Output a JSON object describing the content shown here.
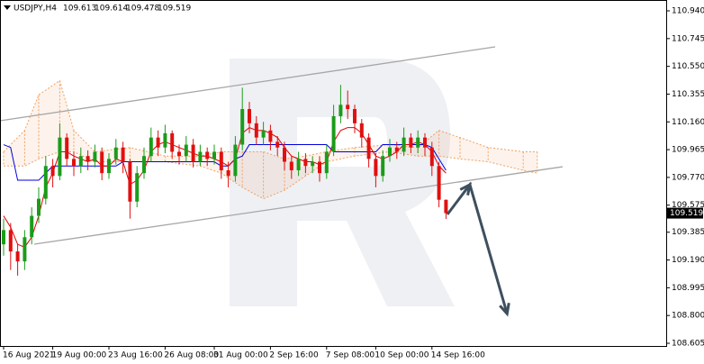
{
  "chart_data": {
    "type": "candlestick",
    "title": "USDJPY,H4",
    "up_color": "#1a9c1a",
    "down_color": "#e01010",
    "open": [
      109.3,
      109.4,
      109.25,
      109.18,
      109.35,
      109.5,
      109.62,
      109.85,
      109.78,
      110.05,
      109.9,
      109.85,
      109.92,
      109.88,
      109.95,
      109.8,
      109.9,
      109.98,
      109.88,
      109.6,
      109.8,
      109.92,
      110.05,
      109.98,
      110.08,
      109.95,
      109.92,
      110.0,
      109.88,
      109.95,
      109.9,
      109.95,
      109.82,
      109.78,
      110.0,
      110.25,
      110.15,
      110.05,
      110.1,
      110.02,
      109.98,
      109.88,
      109.82,
      109.9,
      109.85,
      109.88,
      109.8,
      109.95,
      110.2,
      110.28,
      110.25,
      110.15,
      110.05,
      109.9,
      109.78,
      109.92,
      109.98,
      109.95,
      110.05,
      109.98,
      110.05,
      109.98,
      109.85,
      109.613
    ],
    "high": [
      109.48,
      109.45,
      109.3,
      109.4,
      109.56,
      109.7,
      109.92,
      109.9,
      110.15,
      110.08,
      109.95,
      109.98,
      109.96,
      110.0,
      109.98,
      109.94,
      110.04,
      110.02,
      109.9,
      109.85,
      109.98,
      110.12,
      110.1,
      110.14,
      110.1,
      110.0,
      110.06,
      110.04,
      110.0,
      109.98,
      110.0,
      109.98,
      109.88,
      110.06,
      110.4,
      110.3,
      110.2,
      110.16,
      110.14,
      110.06,
      110.02,
      109.92,
      109.95,
      109.94,
      109.92,
      109.92,
      110.0,
      110.28,
      110.42,
      110.38,
      110.28,
      110.18,
      110.08,
      109.94,
      109.96,
      110.04,
      110.02,
      110.12,
      110.08,
      110.1,
      110.08,
      110.02,
      109.88,
      109.614
    ],
    "low": [
      109.22,
      109.12,
      109.08,
      109.12,
      109.3,
      109.45,
      109.58,
      109.7,
      109.75,
      109.85,
      109.78,
      109.8,
      109.82,
      109.84,
      109.75,
      109.76,
      109.86,
      109.8,
      109.48,
      109.56,
      109.76,
      109.88,
      109.92,
      109.94,
      109.9,
      109.86,
      109.88,
      109.84,
      109.85,
      109.85,
      109.86,
      109.76,
      109.7,
      109.74,
      109.96,
      110.08,
      110.0,
      110.0,
      109.96,
      109.92,
      109.82,
      109.76,
      109.78,
      109.8,
      109.8,
      109.74,
      109.76,
      109.92,
      110.15,
      110.18,
      110.08,
      109.98,
      109.84,
      109.7,
      109.74,
      109.88,
      109.9,
      109.92,
      109.94,
      109.94,
      109.92,
      109.78,
      109.56,
      109.478
    ],
    "close": [
      109.4,
      109.25,
      109.18,
      109.35,
      109.5,
      109.62,
      109.85,
      109.78,
      110.05,
      109.9,
      109.85,
      109.92,
      109.88,
      109.95,
      109.8,
      109.9,
      109.98,
      109.88,
      109.6,
      109.8,
      109.92,
      110.05,
      109.98,
      110.08,
      109.95,
      109.92,
      110.0,
      109.88,
      109.95,
      109.9,
      109.95,
      109.82,
      109.78,
      110.0,
      110.25,
      110.15,
      110.05,
      110.1,
      110.02,
      109.98,
      109.88,
      109.82,
      109.9,
      109.85,
      109.88,
      109.8,
      109.95,
      110.2,
      110.28,
      110.25,
      110.15,
      110.05,
      109.9,
      109.78,
      109.92,
      109.98,
      109.95,
      110.05,
      109.98,
      110.05,
      109.98,
      109.85,
      109.613,
      109.519
    ],
    "xticks": [
      {
        "value": 0,
        "label": "16 Aug 2021"
      },
      {
        "value": 7,
        "label": "19 Aug 00:00"
      },
      {
        "value": 15,
        "label": "23 Aug 16:00"
      },
      {
        "value": 23,
        "label": "26 Aug 08:00"
      },
      {
        "value": 30,
        "label": "31 Aug 00:00"
      },
      {
        "value": 38,
        "label": "2 Sep 16:00"
      },
      {
        "value": 46,
        "label": "7 Sep 08:00"
      },
      {
        "value": 53,
        "label": "10 Sep 00:00"
      },
      {
        "value": 61,
        "label": "14 Sep 16:00"
      }
    ],
    "ylim": [
      108.586,
      111.016
    ],
    "yticks": [
      {
        "value": 110.94,
        "label": "110.940"
      },
      110.745,
      {
        "value": 110.55,
        "label": "110.550"
      },
      110.355,
      {
        "value": 110.16,
        "label": "110.160"
      },
      109.965,
      {
        "value": 109.77,
        "label": "109.770"
      },
      109.575,
      109.385,
      {
        "value": 109.19,
        "label": "109.190"
      },
      108.995,
      {
        "value": 108.8,
        "label": "108.800"
      },
      108.605
    ],
    "tenkan": {
      "color": "#e00000",
      "values": [
        109.5,
        109.42,
        109.3,
        109.28,
        109.35,
        109.5,
        109.7,
        109.8,
        109.95,
        109.95,
        109.92,
        109.9,
        109.88,
        109.9,
        109.85,
        109.85,
        109.9,
        109.88,
        109.72,
        109.75,
        109.82,
        109.95,
        110.0,
        110.02,
        110.0,
        109.98,
        109.96,
        109.94,
        109.92,
        109.92,
        109.9,
        109.88,
        109.85,
        109.9,
        110.08,
        110.12,
        110.1,
        110.1,
        110.08,
        110.05,
        109.98,
        109.92,
        109.9,
        109.88,
        109.88,
        109.86,
        109.88,
        110.02,
        110.1,
        110.12,
        110.12,
        110.08,
        110.0,
        109.92,
        109.9,
        109.92,
        109.95,
        110.0,
        110.0,
        110.02,
        110.0,
        109.95,
        109.85,
        109.8
      ]
    },
    "kijun": {
      "color": "#0000e0",
      "values": [
        110.0,
        109.98,
        109.75,
        109.75,
        109.75,
        109.75,
        109.8,
        109.85,
        109.85,
        109.85,
        109.85,
        109.85,
        109.85,
        109.85,
        109.85,
        109.85,
        109.85,
        109.88,
        109.88,
        109.88,
        109.88,
        109.88,
        109.88,
        109.88,
        109.88,
        109.88,
        109.88,
        109.88,
        109.88,
        109.88,
        109.88,
        109.85,
        109.85,
        109.9,
        109.92,
        110.0,
        110.0,
        110.0,
        110.0,
        110.0,
        110.0,
        110.0,
        110.0,
        110.0,
        110.0,
        110.0,
        110.0,
        109.95,
        109.95,
        109.95,
        109.95,
        109.95,
        109.95,
        109.95,
        110.0,
        110.0,
        110.0,
        110.0,
        110.0,
        110.0,
        110.0,
        109.98,
        109.9,
        109.82
      ]
    },
    "cloud": {
      "color": "#f0a060",
      "x": [
        0,
        3,
        5,
        8,
        10,
        13,
        18,
        23,
        28,
        31,
        34,
        37,
        40,
        43,
        46,
        50,
        55,
        59,
        62,
        65,
        69,
        74,
        76
      ],
      "upper": [
        109.95,
        110.1,
        110.35,
        110.45,
        110.1,
        109.95,
        109.98,
        109.92,
        109.92,
        109.95,
        109.95,
        109.95,
        109.9,
        109.92,
        109.95,
        109.98,
        110.0,
        109.98,
        110.1,
        110.05,
        109.98,
        109.95,
        109.95
      ],
      "lower": [
        109.85,
        109.85,
        109.9,
        109.95,
        109.95,
        109.88,
        109.88,
        109.88,
        109.85,
        109.8,
        109.7,
        109.62,
        109.68,
        109.78,
        109.88,
        109.92,
        109.95,
        109.92,
        109.92,
        109.9,
        109.88,
        109.82,
        109.8
      ]
    },
    "trend_lines": [
      {
        "color": "#a6a6a6",
        "x": [
          -0.51,
          70
        ],
        "y": [
          110.168,
          110.687
        ]
      },
      {
        "color": "#a6a6a6",
        "x": [
          4.36,
          79.6
        ],
        "y": [
          109.301,
          109.845
        ]
      }
    ],
    "arrow": {
      "color": "#3e4f5e",
      "x": [
        63.2,
        66.4,
        71.7
      ],
      "y": [
        109.51,
        109.719,
        108.813
      ]
    }
  }
}
